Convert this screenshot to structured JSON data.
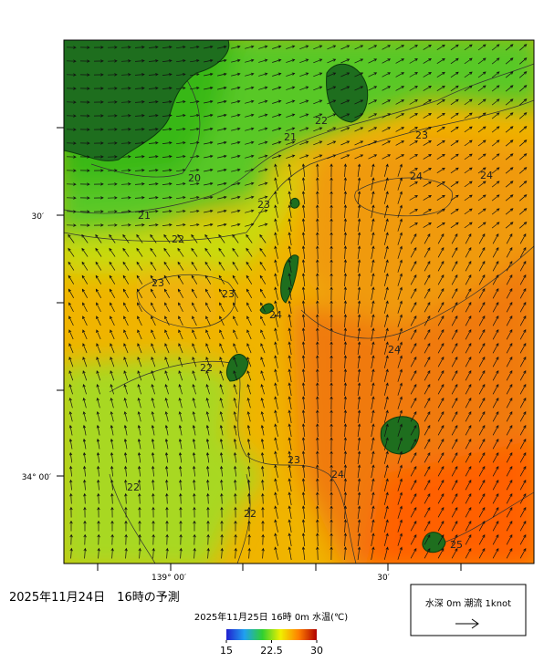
{
  "map": {
    "axis_labels": {
      "lat": [
        "30′",
        "34° 00′"
      ],
      "lon": [
        "139° 00′",
        "30′"
      ]
    },
    "contour_labels": [
      "20",
      "21",
      "21",
      "22",
      "22",
      "23",
      "24",
      "24",
      "23",
      "23",
      "23",
      "24",
      "24",
      "22",
      "22",
      "22",
      "23",
      "24",
      "25"
    ],
    "forecast_title": "2025年11月24日　16時の予測",
    "colorbar": {
      "title": "2025年11月25日 16時 0m 水温(℃)",
      "range": [
        15,
        30
      ],
      "ticks": [
        15,
        22.5,
        30
      ]
    },
    "legend": {
      "text": "水深 0m 潮流 1knot"
    }
  }
}
